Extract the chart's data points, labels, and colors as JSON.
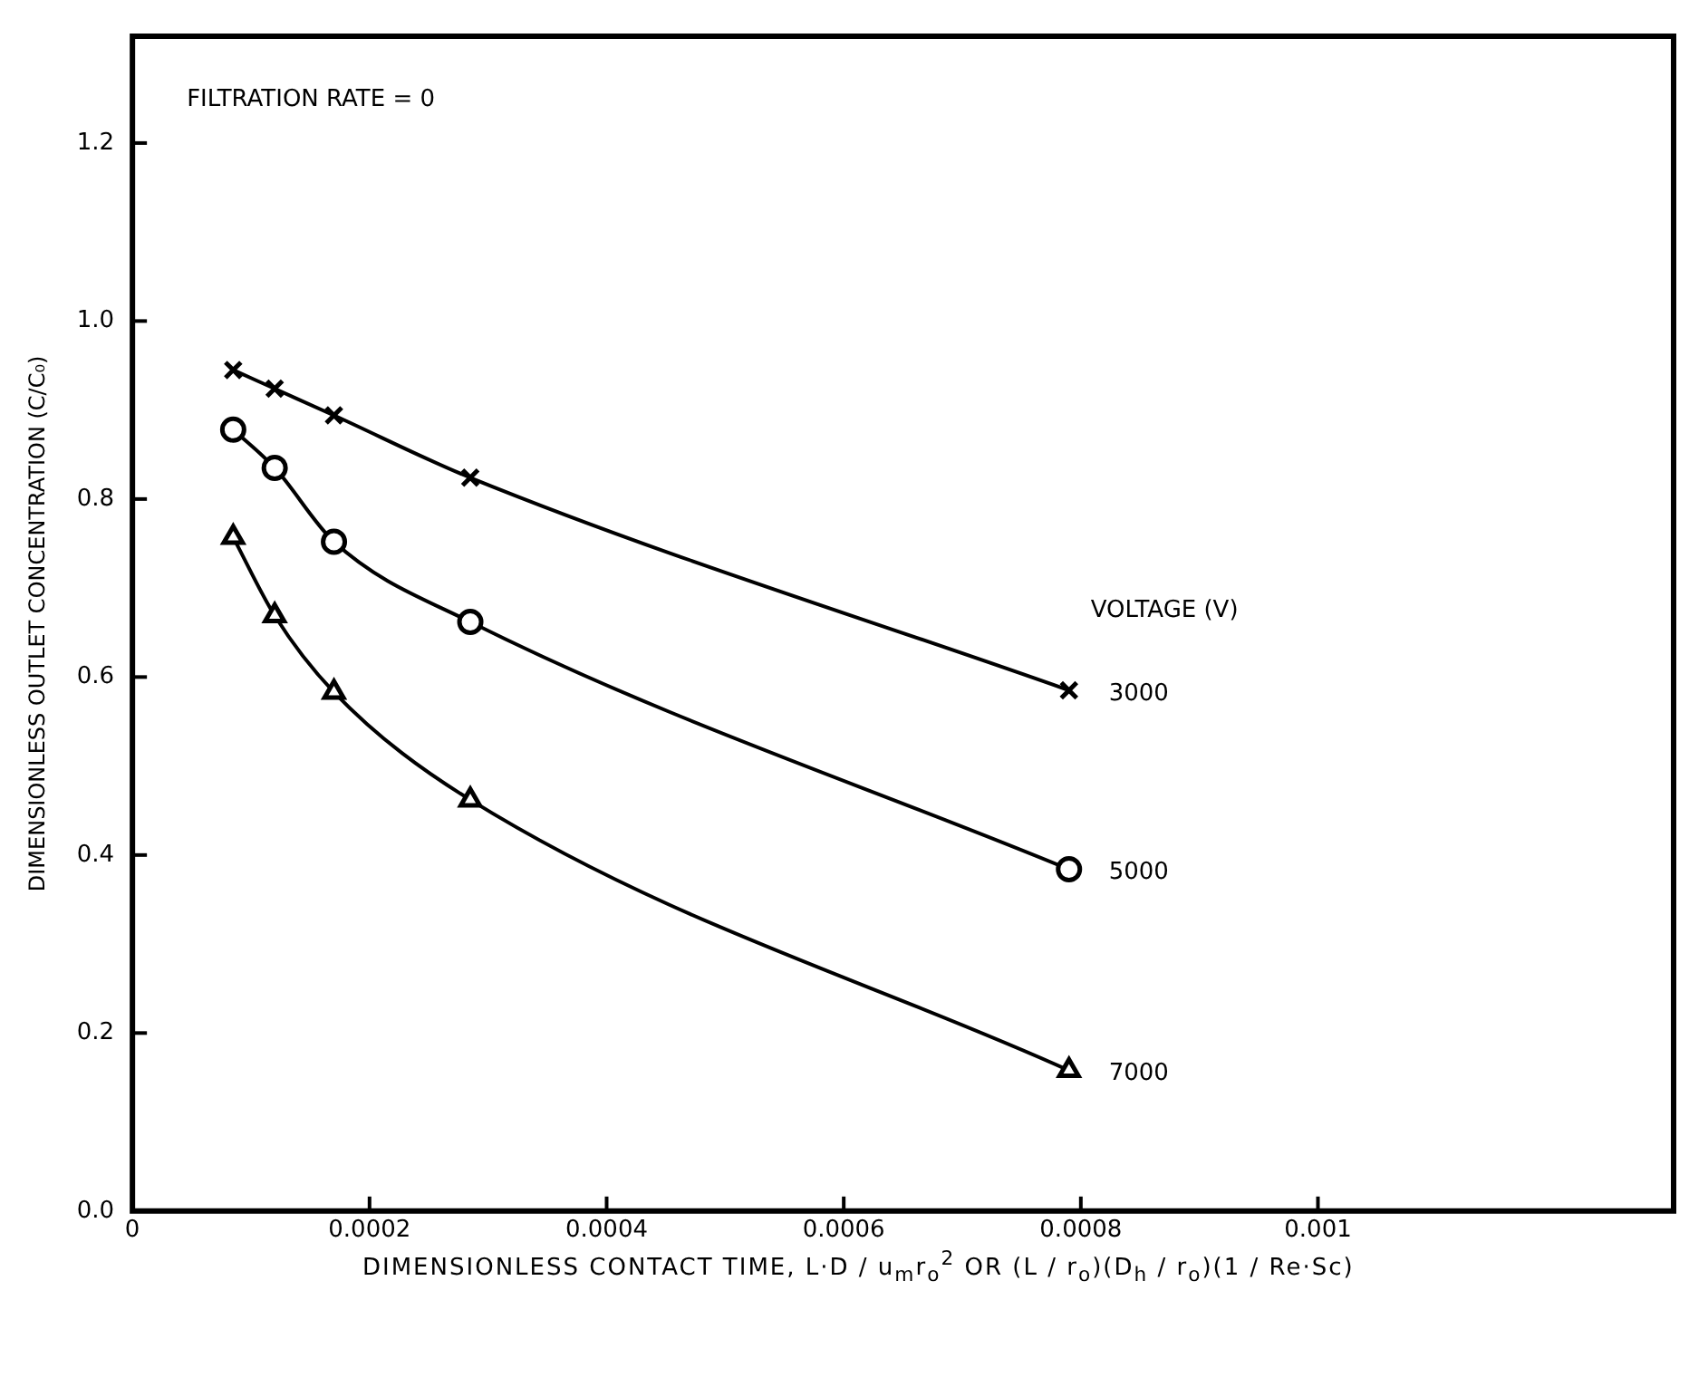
{
  "chart_data": {
    "type": "line",
    "xlabel": "DIMENSIONLESS CONTACT TIME,  L·D / u$_{m}$r$_{o}$$^{2}$  OR  (L / r$_{o}$)(D$_{h}$ / r$_{o}$)(1 / Re·Sc)",
    "ylabel": "DIMENSIONLESS OUTLET CONCENTRATION (C/C₀)",
    "legend_title": "VOLTAGE (V)",
    "annotations": [
      "FILTRATION RATE = 0"
    ],
    "x": [
      8.5e-05,
      0.00012,
      0.00017,
      0.000285,
      0.00079
    ],
    "series": [
      {
        "name": "3000",
        "color": "#000000",
        "marker": "cross",
        "values": [
          0.945,
          0.924,
          0.894,
          0.824,
          0.585
        ]
      },
      {
        "name": "5000",
        "color": "#000000",
        "marker": "circle",
        "values": [
          0.878,
          0.835,
          0.752,
          0.662,
          0.384
        ]
      },
      {
        "name": "7000",
        "color": "#000000",
        "marker": "triangle",
        "values": [
          0.757,
          0.669,
          0.583,
          0.462,
          0.158
        ]
      }
    ],
    "xlim": [
      0,
      0.0013
    ],
    "xticks": [
      0,
      0.0002,
      0.0004,
      0.0006,
      0.0008,
      0.001
    ],
    "ylim": [
      0,
      1.32
    ],
    "yticks": [
      {
        "value": 0,
        "label": "0.0"
      },
      0.2,
      0.4,
      0.6,
      0.8,
      {
        "value": 1,
        "label": "1.0"
      },
      1.2
    ],
    "grid": false,
    "line_style": "solid"
  }
}
